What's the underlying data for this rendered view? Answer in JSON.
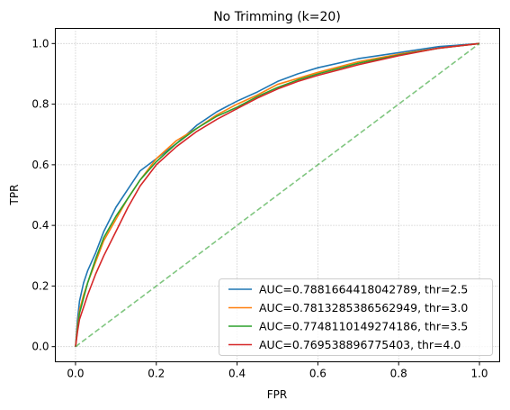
{
  "chart_data": {
    "type": "line",
    "title": "No Trimming (k=20)",
    "xlabel": "FPR",
    "ylabel": "TPR",
    "xlim": [
      -0.05,
      1.05
    ],
    "ylim": [
      -0.05,
      1.05
    ],
    "xticks": [
      0.0,
      0.2,
      0.4,
      0.6,
      0.8,
      1.0
    ],
    "yticks": [
      0.0,
      0.2,
      0.4,
      0.6,
      0.8,
      1.0
    ],
    "xtick_labels": [
      "0.0",
      "0.2",
      "0.4",
      "0.6",
      "0.8",
      "1.0"
    ],
    "ytick_labels": [
      "0.0",
      "0.2",
      "0.4",
      "0.6",
      "0.8",
      "1.0"
    ],
    "grid": true,
    "legend_position": "lower-right",
    "series": [
      {
        "name": "AUC=0.7881664418042789, thr=2.5",
        "color": "#1f77b4",
        "x": [
          0,
          0.005,
          0.01,
          0.02,
          0.03,
          0.05,
          0.07,
          0.1,
          0.13,
          0.16,
          0.2,
          0.25,
          0.3,
          0.35,
          0.4,
          0.45,
          0.5,
          0.55,
          0.6,
          0.7,
          0.8,
          0.9,
          1.0
        ],
        "y": [
          0,
          0.09,
          0.15,
          0.21,
          0.25,
          0.31,
          0.38,
          0.46,
          0.52,
          0.58,
          0.62,
          0.67,
          0.73,
          0.775,
          0.81,
          0.84,
          0.875,
          0.9,
          0.92,
          0.95,
          0.97,
          0.99,
          1.0
        ]
      },
      {
        "name": "AUC=0.7813285386562949, thr=3.0",
        "color": "#ff7f0e",
        "x": [
          0,
          0.005,
          0.01,
          0.02,
          0.03,
          0.05,
          0.07,
          0.1,
          0.13,
          0.16,
          0.2,
          0.25,
          0.3,
          0.35,
          0.4,
          0.45,
          0.5,
          0.55,
          0.6,
          0.7,
          0.8,
          0.9,
          1.0
        ],
        "y": [
          0,
          0.07,
          0.12,
          0.17,
          0.21,
          0.28,
          0.35,
          0.42,
          0.49,
          0.55,
          0.62,
          0.68,
          0.72,
          0.765,
          0.8,
          0.83,
          0.865,
          0.885,
          0.905,
          0.94,
          0.965,
          0.985,
          1.0
        ]
      },
      {
        "name": "AUC=0.7748110149274186, thr=3.5",
        "color": "#2ca02c",
        "x": [
          0,
          0.005,
          0.01,
          0.02,
          0.03,
          0.05,
          0.07,
          0.1,
          0.13,
          0.16,
          0.2,
          0.25,
          0.3,
          0.35,
          0.4,
          0.45,
          0.5,
          0.55,
          0.6,
          0.7,
          0.8,
          0.9,
          1.0
        ],
        "y": [
          0,
          0.06,
          0.11,
          0.16,
          0.21,
          0.29,
          0.36,
          0.43,
          0.49,
          0.55,
          0.61,
          0.67,
          0.72,
          0.76,
          0.79,
          0.825,
          0.855,
          0.88,
          0.9,
          0.935,
          0.962,
          0.985,
          1.0
        ]
      },
      {
        "name": "AUC=0.769538896775403, thr=4.0",
        "color": "#d62728",
        "x": [
          0,
          0.005,
          0.01,
          0.02,
          0.03,
          0.05,
          0.07,
          0.1,
          0.13,
          0.16,
          0.2,
          0.25,
          0.3,
          0.35,
          0.4,
          0.45,
          0.5,
          0.55,
          0.6,
          0.7,
          0.8,
          0.9,
          1.0
        ],
        "y": [
          0,
          0.05,
          0.09,
          0.13,
          0.17,
          0.24,
          0.3,
          0.38,
          0.46,
          0.53,
          0.6,
          0.66,
          0.71,
          0.75,
          0.785,
          0.82,
          0.85,
          0.875,
          0.895,
          0.93,
          0.96,
          0.985,
          1.0
        ]
      },
      {
        "x": [
          0,
          1
        ],
        "y": [
          0,
          1
        ],
        "color": "#2ca02c",
        "dashed": true,
        "reference": true
      }
    ]
  }
}
